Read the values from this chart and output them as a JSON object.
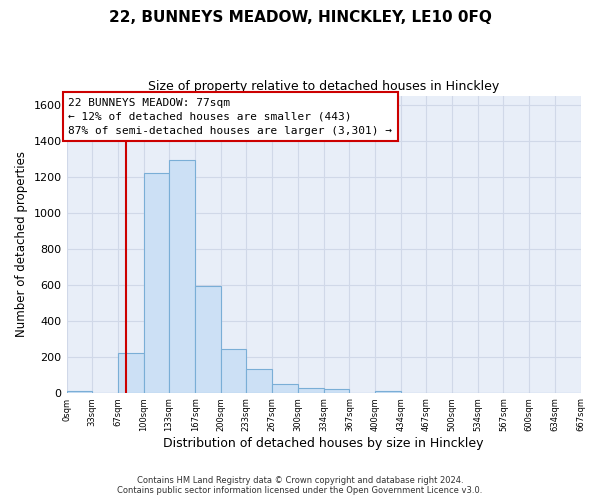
{
  "title": "22, BUNNEYS MEADOW, HINCKLEY, LE10 0FQ",
  "subtitle": "Size of property relative to detached houses in Hinckley",
  "xlabel": "Distribution of detached houses by size in Hinckley",
  "ylabel": "Number of detached properties",
  "bar_edges": [
    0,
    33,
    67,
    100,
    133,
    167,
    200,
    233,
    267,
    300,
    334,
    367,
    400,
    434,
    467,
    500,
    534,
    567,
    600,
    634,
    667
  ],
  "bar_heights": [
    10,
    0,
    220,
    1220,
    1290,
    590,
    240,
    130,
    50,
    25,
    20,
    0,
    10,
    0,
    0,
    0,
    0,
    0,
    0,
    0
  ],
  "bar_color": "#cce0f5",
  "bar_edge_color": "#7aaed6",
  "property_line_x": 77,
  "property_line_color": "#cc0000",
  "annotation_line1": "22 BUNNEYS MEADOW: 77sqm",
  "annotation_line2": "← 12% of detached houses are smaller (443)",
  "annotation_line3": "87% of semi-detached houses are larger (3,301) →",
  "ylim": [
    0,
    1650
  ],
  "yticks": [
    0,
    200,
    400,
    600,
    800,
    1000,
    1200,
    1400,
    1600
  ],
  "xtick_labels": [
    "0sqm",
    "33sqm",
    "67sqm",
    "100sqm",
    "133sqm",
    "167sqm",
    "200sqm",
    "233sqm",
    "267sqm",
    "300sqm",
    "334sqm",
    "367sqm",
    "400sqm",
    "434sqm",
    "467sqm",
    "500sqm",
    "534sqm",
    "567sqm",
    "600sqm",
    "634sqm",
    "667sqm"
  ],
  "footer_line1": "Contains HM Land Registry data © Crown copyright and database right 2024.",
  "footer_line2": "Contains public sector information licensed under the Open Government Licence v3.0.",
  "grid_color": "#d0d8e8",
  "background_color": "#ffffff"
}
